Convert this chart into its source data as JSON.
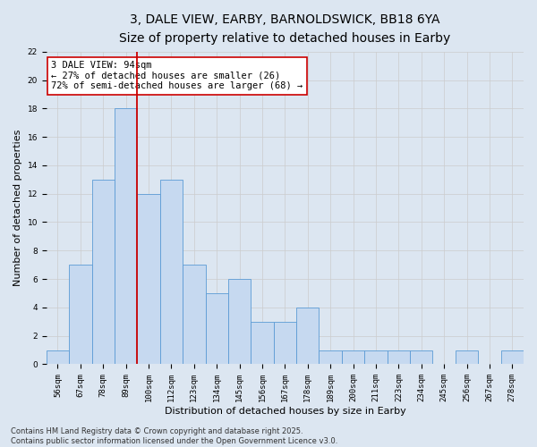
{
  "title_line1": "3, DALE VIEW, EARBY, BARNOLDSWICK, BB18 6YA",
  "title_line2": "Size of property relative to detached houses in Earby",
  "xlabel": "Distribution of detached houses by size in Earby",
  "ylabel": "Number of detached properties",
  "categories": [
    "56sqm",
    "67sqm",
    "78sqm",
    "89sqm",
    "100sqm",
    "112sqm",
    "123sqm",
    "134sqm",
    "145sqm",
    "156sqm",
    "167sqm",
    "178sqm",
    "189sqm",
    "200sqm",
    "211sqm",
    "223sqm",
    "234sqm",
    "245sqm",
    "256sqm",
    "267sqm",
    "278sqm"
  ],
  "values": [
    1,
    7,
    13,
    18,
    12,
    13,
    7,
    5,
    6,
    3,
    3,
    4,
    1,
    1,
    1,
    1,
    1,
    0,
    1,
    0,
    1
  ],
  "bar_color": "#c6d9f0",
  "bar_edge_color": "#5b9bd5",
  "reference_line_x": 3.5,
  "reference_line_color": "#cc0000",
  "annotation_text": "3 DALE VIEW: 94sqm\n← 27% of detached houses are smaller (26)\n72% of semi-detached houses are larger (68) →",
  "annotation_box_color": "#ffffff",
  "annotation_box_edge": "#cc0000",
  "ylim": [
    0,
    22
  ],
  "yticks": [
    0,
    2,
    4,
    6,
    8,
    10,
    12,
    14,
    16,
    18,
    20,
    22
  ],
  "grid_color": "#cccccc",
  "bg_color": "#dce6f1",
  "footer": "Contains HM Land Registry data © Crown copyright and database right 2025.\nContains public sector information licensed under the Open Government Licence v3.0.",
  "title_fontsize": 10,
  "subtitle_fontsize": 9,
  "label_fontsize": 8,
  "tick_fontsize": 6.5,
  "annotation_fontsize": 7.5,
  "footer_fontsize": 6
}
